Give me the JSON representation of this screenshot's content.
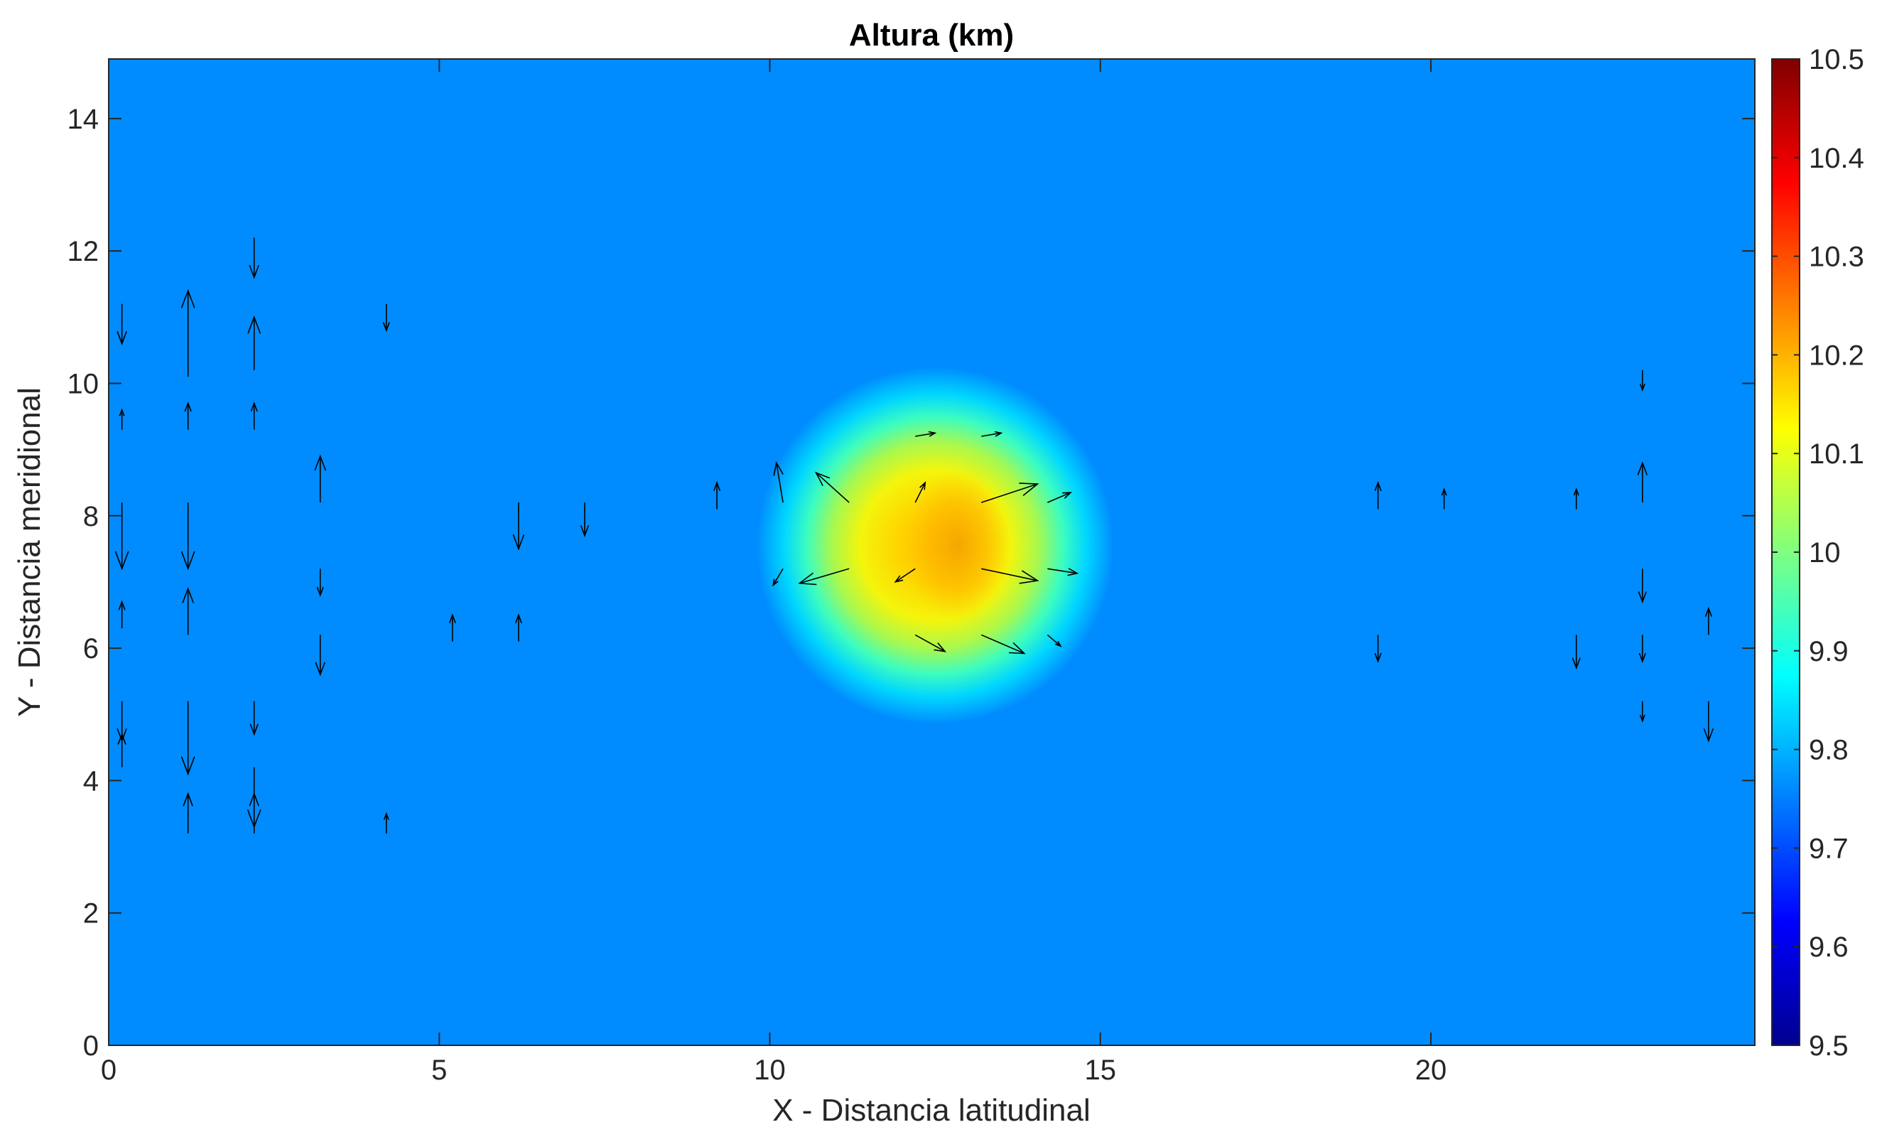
{
  "chart_data": {
    "type": "heatmap",
    "subtype": "height field with velocity vectors (quiver)",
    "title": "Altura (km)",
    "xlabel": "X - Distancia latitudinal",
    "ylabel": "Y - Distancia meridional",
    "xlim": [
      0,
      24.9
    ],
    "ylim": [
      0,
      14.9
    ],
    "xticks": [
      0,
      5,
      10,
      15,
      20
    ],
    "yticks": [
      0,
      2,
      4,
      6,
      8,
      10,
      12,
      14
    ],
    "grid": false,
    "colormap": "jet",
    "clim": [
      9.5,
      10.5
    ],
    "colorbar_ticks": [
      9.5,
      9.6,
      9.7,
      9.8,
      9.9,
      10,
      10.1,
      10.2,
      10.3,
      10.4,
      10.5
    ],
    "colorbar_location": "right",
    "field": {
      "background_value": 9.76,
      "blob": {
        "center_x": 12.5,
        "center_y": 7.55,
        "radius": 2.7,
        "peak_value": 10.18
      }
    },
    "vectors": [
      {
        "x": 0.2,
        "y": 11.2,
        "u": 0,
        "v": -0.6
      },
      {
        "x": 0.2,
        "y": 9.3,
        "u": 0,
        "v": 0.3
      },
      {
        "x": 0.2,
        "y": 8.2,
        "u": 0,
        "v": -1.0
      },
      {
        "x": 0.2,
        "y": 6.3,
        "u": 0,
        "v": 0.4
      },
      {
        "x": 0.2,
        "y": 5.2,
        "u": 0,
        "v": -0.6
      },
      {
        "x": 0.2,
        "y": 4.2,
        "u": 0,
        "v": 0.5
      },
      {
        "x": 1.2,
        "y": 10.1,
        "u": 0,
        "v": 1.3
      },
      {
        "x": 1.2,
        "y": 9.3,
        "u": 0,
        "v": 0.4
      },
      {
        "x": 1.2,
        "y": 8.2,
        "u": 0,
        "v": -1.0
      },
      {
        "x": 1.2,
        "y": 6.2,
        "u": 0,
        "v": 0.7
      },
      {
        "x": 1.2,
        "y": 5.2,
        "u": 0,
        "v": -1.1
      },
      {
        "x": 1.2,
        "y": 3.2,
        "u": 0,
        "v": 0.6
      },
      {
        "x": 2.2,
        "y": 12.2,
        "u": 0,
        "v": -0.6
      },
      {
        "x": 2.2,
        "y": 10.2,
        "u": 0,
        "v": 0.8
      },
      {
        "x": 2.2,
        "y": 9.3,
        "u": 0,
        "v": 0.4
      },
      {
        "x": 2.2,
        "y": 5.2,
        "u": 0,
        "v": -0.5
      },
      {
        "x": 2.2,
        "y": 4.2,
        "u": 0,
        "v": -0.9
      },
      {
        "x": 2.2,
        "y": 3.2,
        "u": 0,
        "v": 0.6
      },
      {
        "x": 3.2,
        "y": 8.2,
        "u": 0,
        "v": 0.7
      },
      {
        "x": 3.2,
        "y": 7.2,
        "u": 0,
        "v": -0.4
      },
      {
        "x": 3.2,
        "y": 6.2,
        "u": 0,
        "v": -0.6
      },
      {
        "x": 4.2,
        "y": 11.2,
        "u": 0,
        "v": -0.4
      },
      {
        "x": 4.2,
        "y": 3.2,
        "u": 0,
        "v": 0.3
      },
      {
        "x": 5.2,
        "y": 6.1,
        "u": 0,
        "v": 0.4
      },
      {
        "x": 6.2,
        "y": 8.2,
        "u": 0,
        "v": -0.7
      },
      {
        "x": 6.2,
        "y": 6.1,
        "u": 0,
        "v": 0.4
      },
      {
        "x": 7.2,
        "y": 8.2,
        "u": 0,
        "v": -0.5
      },
      {
        "x": 9.2,
        "y": 8.1,
        "u": 0,
        "v": 0.4
      },
      {
        "x": 10.2,
        "y": 8.2,
        "u": -0.1,
        "v": 0.6
      },
      {
        "x": 11.2,
        "y": 8.2,
        "u": -0.5,
        "v": 0.45
      },
      {
        "x": 11.2,
        "y": 7.2,
        "u": -0.75,
        "v": -0.22
      },
      {
        "x": 10.2,
        "y": 7.2,
        "u": -0.15,
        "v": -0.25
      },
      {
        "x": 12.2,
        "y": 8.2,
        "u": 0.15,
        "v": 0.3
      },
      {
        "x": 12.2,
        "y": 7.2,
        "u": -0.3,
        "v": -0.2
      },
      {
        "x": 12.2,
        "y": 6.2,
        "u": 0.45,
        "v": -0.25
      },
      {
        "x": 12.2,
        "y": 9.2,
        "u": 0.3,
        "v": 0.05
      },
      {
        "x": 13.2,
        "y": 9.2,
        "u": 0.3,
        "v": 0.05
      },
      {
        "x": 13.2,
        "y": 8.2,
        "u": 0.85,
        "v": 0.28
      },
      {
        "x": 13.2,
        "y": 7.2,
        "u": 0.85,
        "v": -0.18
      },
      {
        "x": 13.2,
        "y": 6.2,
        "u": 0.65,
        "v": -0.28
      },
      {
        "x": 14.2,
        "y": 8.2,
        "u": 0.35,
        "v": 0.15
      },
      {
        "x": 14.2,
        "y": 7.2,
        "u": 0.45,
        "v": -0.07
      },
      {
        "x": 14.2,
        "y": 6.2,
        "u": 0.2,
        "v": -0.17
      },
      {
        "x": 19.2,
        "y": 8.1,
        "u": 0,
        "v": 0.4
      },
      {
        "x": 19.2,
        "y": 6.2,
        "u": 0,
        "v": -0.4
      },
      {
        "x": 20.2,
        "y": 8.1,
        "u": 0,
        "v": 0.3
      },
      {
        "x": 22.2,
        "y": 8.1,
        "u": 0,
        "v": 0.3
      },
      {
        "x": 22.2,
        "y": 6.2,
        "u": 0,
        "v": -0.5
      },
      {
        "x": 23.2,
        "y": 8.2,
        "u": 0,
        "v": 0.6
      },
      {
        "x": 23.2,
        "y": 7.2,
        "u": 0,
        "v": -0.5
      },
      {
        "x": 23.2,
        "y": 6.2,
        "u": 0,
        "v": -0.4
      },
      {
        "x": 23.2,
        "y": 5.2,
        "u": 0,
        "v": -0.3
      },
      {
        "x": 23.2,
        "y": 10.2,
        "u": 0,
        "v": -0.3
      },
      {
        "x": 24.2,
        "y": 6.2,
        "u": 0,
        "v": 0.4
      },
      {
        "x": 24.2,
        "y": 5.2,
        "u": 0,
        "v": -0.6
      }
    ]
  }
}
